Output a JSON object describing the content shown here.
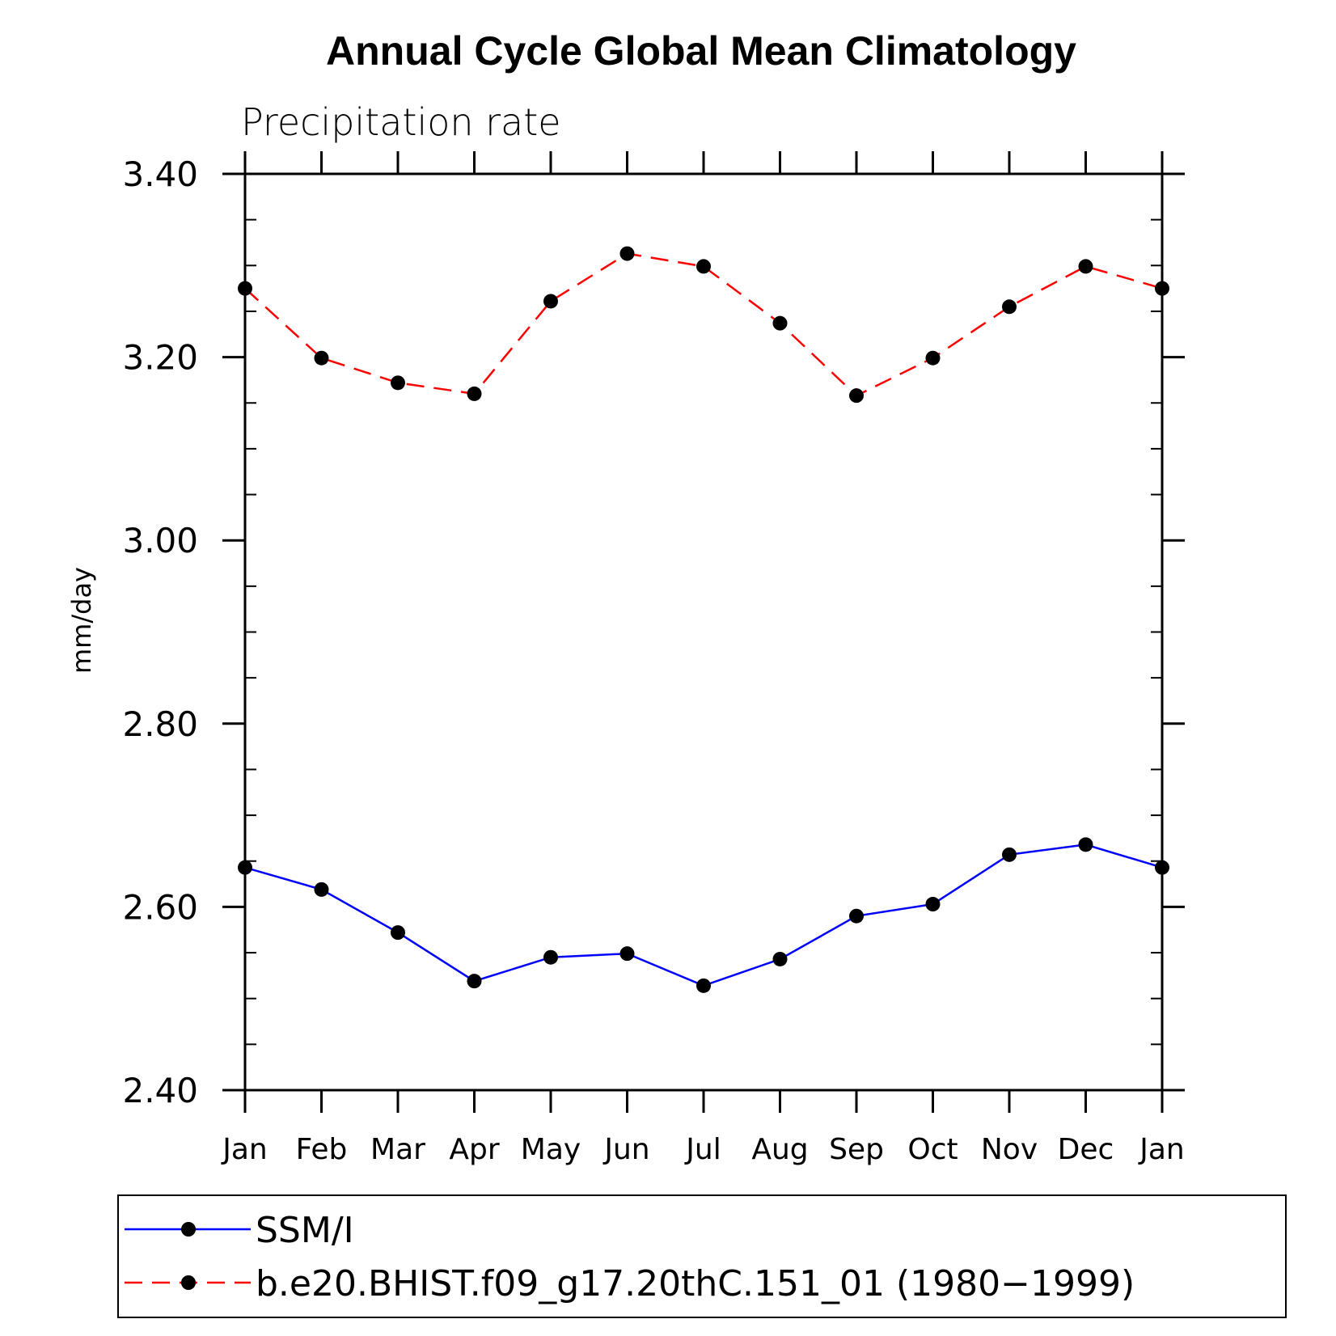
{
  "chart_data": {
    "type": "line",
    "title": "Annual Cycle Global Mean Climatology",
    "subtitle": "Precipitation rate",
    "xlabel": "",
    "ylabel": "mm/day",
    "categories": [
      "Jan",
      "Feb",
      "Mar",
      "Apr",
      "May",
      "Jun",
      "Jul",
      "Aug",
      "Sep",
      "Oct",
      "Nov",
      "Dec",
      "Jan"
    ],
    "ylim": [
      2.4,
      3.4
    ],
    "yticks": [
      "2.40",
      "2.60",
      "2.80",
      "3.00",
      "3.20",
      "3.40"
    ],
    "legend_position": "bottom",
    "series": [
      {
        "name": "SSM/I",
        "color": "#0000ff",
        "style": "solid",
        "marker": "filled-circle",
        "values": [
          2.643,
          2.619,
          2.572,
          2.519,
          2.545,
          2.549,
          2.514,
          2.543,
          2.59,
          2.603,
          2.657,
          2.668,
          2.643
        ]
      },
      {
        "name": "b.e20.BHIST.f09_g17.20thC.151_01 (1980−1999)",
        "color": "#ff0000",
        "style": "dashed",
        "marker": "filled-circle",
        "values": [
          3.275,
          3.199,
          3.172,
          3.16,
          3.261,
          3.313,
          3.299,
          3.237,
          3.158,
          3.199,
          3.255,
          3.299,
          3.275
        ]
      }
    ]
  }
}
